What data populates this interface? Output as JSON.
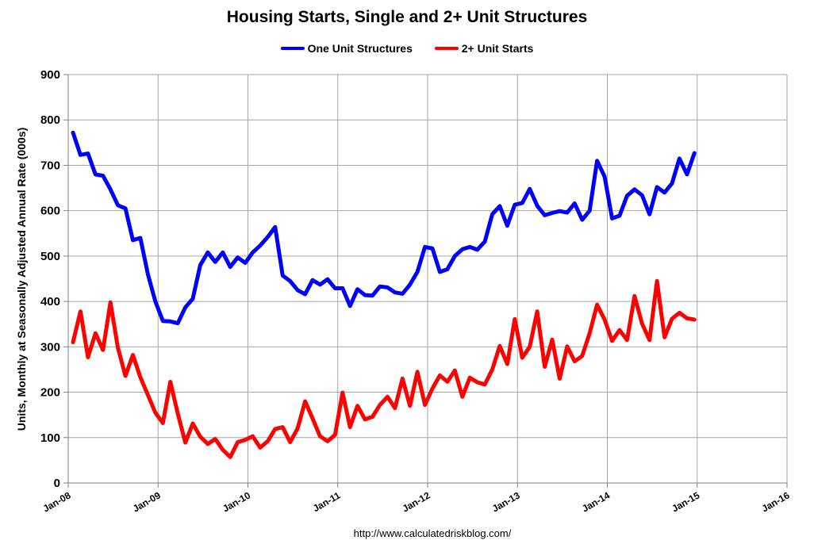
{
  "chart_data": {
    "type": "line",
    "title": "Housing Starts, Single and 2+ Unit Structures",
    "ylabel": "Units, Monthly at Seasonally Adjusted Annual Rate (000s)",
    "xlabel": "",
    "ylim": [
      0,
      900
    ],
    "xlim": [
      "Jan-08",
      "Jan-16"
    ],
    "y_ticks": [
      "0",
      "100",
      "200",
      "300",
      "400",
      "500",
      "600",
      "700",
      "800",
      "900"
    ],
    "x_ticks": [
      "Jan-08",
      "Jan-09",
      "Jan-10",
      "Jan-11",
      "Jan-12",
      "Jan-13",
      "Jan-14",
      "Jan-15",
      "Jan-16"
    ],
    "grid": true,
    "legend_position": "top",
    "start_month": "Jan-08",
    "series": [
      {
        "name": "One Unit Structures",
        "color": "#0000ff",
        "values": [
          772,
          723,
          726,
          680,
          677,
          647,
          612,
          605,
          535,
          540,
          460,
          400,
          357,
          356,
          352,
          387,
          406,
          480,
          508,
          487,
          508,
          476,
          497,
          485,
          508,
          523,
          542,
          564,
          457,
          445,
          425,
          416,
          447,
          437,
          449,
          429,
          429,
          390,
          427,
          414,
          413,
          433,
          431,
          420,
          417,
          437,
          465,
          520,
          517,
          465,
          471,
          500,
          515,
          520,
          514,
          532,
          592,
          610,
          567,
          613,
          617,
          648,
          611,
          590,
          595,
          599,
          596,
          616,
          580,
          600,
          710,
          675,
          583,
          589,
          633,
          647,
          634,
          592,
          652,
          640,
          660,
          715,
          680,
          727
        ],
        "tooltip": ""
      },
      {
        "name": "2+ Unit Starts",
        "color": "#ff0000",
        "values": [
          310,
          378,
          277,
          330,
          293,
          398,
          298,
          236,
          282,
          233,
          194,
          155,
          132,
          223,
          153,
          89,
          131,
          102,
          86,
          97,
          73,
          57,
          90,
          95,
          103,
          78,
          92,
          119,
          123,
          90,
          120,
          180,
          142,
          103,
          92,
          106,
          199,
          123,
          170,
          140,
          146,
          172,
          190,
          165,
          230,
          170,
          245,
          172,
          208,
          237,
          223,
          248,
          190,
          232,
          222,
          217,
          250,
          302,
          262,
          361,
          276,
          300,
          378,
          256,
          316,
          230,
          301,
          268,
          280,
          330,
          393,
          360,
          313,
          337,
          315,
          412,
          351,
          315,
          445,
          321,
          362,
          375,
          363,
          360
        ],
        "tooltip": ""
      }
    ]
  },
  "source_text": "http://www.calculatedriskblog.com/"
}
